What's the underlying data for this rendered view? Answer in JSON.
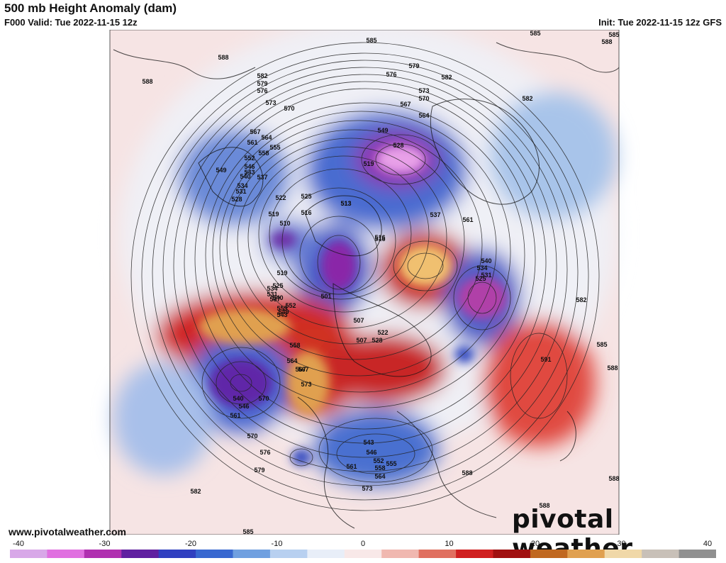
{
  "header": {
    "title": "500 mb Height Anomaly (dam)",
    "valid": "F000 Valid: Tue 2022-11-15 12z",
    "init": "Init: Tue 2022-11-15 12z GFS"
  },
  "footer": {
    "website": "www.pivotalweather.com",
    "logo_text": "pivotal weather"
  },
  "colorbar": {
    "ticks": [
      "-40",
      "-30",
      "-20",
      "-10",
      "0",
      "10",
      "20",
      "30",
      "40"
    ],
    "min": -40,
    "max": 40,
    "colors": [
      "#d8a8e8",
      "#e070e0",
      "#b030b0",
      "#6020a0",
      "#3040c0",
      "#3868d0",
      "#70a0e0",
      "#b8d0f0",
      "#e8eef8",
      "#f8e8e8",
      "#f0b8b0",
      "#e07060",
      "#d02020",
      "#a01010",
      "#c06820",
      "#e0a050",
      "#f0d8a8",
      "#c8c0b8",
      "#909090"
    ]
  },
  "map": {
    "contour_labels": [
      {
        "text": "585"
      },
      {
        "text": "585"
      },
      {
        "text": "588"
      },
      {
        "text": "588"
      },
      {
        "text": "582"
      },
      {
        "text": "579"
      },
      {
        "text": "576"
      },
      {
        "text": "573"
      },
      {
        "text": "570"
      },
      {
        "text": "567"
      },
      {
        "text": "564"
      },
      {
        "text": "561"
      },
      {
        "text": "558"
      },
      {
        "text": "555"
      },
      {
        "text": "552"
      },
      {
        "text": "549"
      },
      {
        "text": "546"
      },
      {
        "text": "543"
      },
      {
        "text": "540"
      },
      {
        "text": "537"
      },
      {
        "text": "534"
      },
      {
        "text": "531"
      },
      {
        "text": "528"
      },
      {
        "text": "525"
      },
      {
        "text": "522"
      },
      {
        "text": "519"
      },
      {
        "text": "516"
      },
      {
        "text": "513"
      },
      {
        "text": "510"
      },
      {
        "text": "507"
      },
      {
        "text": "501"
      },
      {
        "text": "576"
      },
      {
        "text": "579"
      },
      {
        "text": "582"
      },
      {
        "text": "573"
      },
      {
        "text": "570"
      },
      {
        "text": "567"
      },
      {
        "text": "564"
      },
      {
        "text": "549"
      },
      {
        "text": "528"
      },
      {
        "text": "519"
      },
      {
        "text": "513"
      },
      {
        "text": "516"
      },
      {
        "text": "537"
      },
      {
        "text": "561"
      },
      {
        "text": "591"
      },
      {
        "text": "588"
      },
      {
        "text": "585"
      },
      {
        "text": "582"
      },
      {
        "text": "540"
      },
      {
        "text": "534"
      },
      {
        "text": "531"
      },
      {
        "text": "525"
      },
      {
        "text": "567"
      },
      {
        "text": "570"
      },
      {
        "text": "540"
      },
      {
        "text": "546"
      },
      {
        "text": "561"
      },
      {
        "text": "570"
      },
      {
        "text": "576"
      },
      {
        "text": "579"
      },
      {
        "text": "582"
      },
      {
        "text": "585"
      },
      {
        "text": "588"
      },
      {
        "text": "543"
      },
      {
        "text": "546"
      },
      {
        "text": "552"
      },
      {
        "text": "555"
      },
      {
        "text": "558"
      },
      {
        "text": "561"
      },
      {
        "text": "564"
      },
      {
        "text": "573"
      },
      {
        "text": "582"
      },
      {
        "text": "585"
      },
      {
        "text": "588"
      },
      {
        "text": "588"
      },
      {
        "text": "588"
      },
      {
        "text": "564"
      },
      {
        "text": "567"
      },
      {
        "text": "573"
      },
      {
        "text": "555"
      },
      {
        "text": "552"
      },
      {
        "text": "558"
      },
      {
        "text": "543"
      },
      {
        "text": "549"
      },
      {
        "text": "540"
      },
      {
        "text": "537"
      },
      {
        "text": "519"
      },
      {
        "text": "525"
      },
      {
        "text": "534"
      },
      {
        "text": "531"
      },
      {
        "text": "507"
      },
      {
        "text": "522"
      },
      {
        "text": "528"
      },
      {
        "text": "516"
      }
    ]
  }
}
